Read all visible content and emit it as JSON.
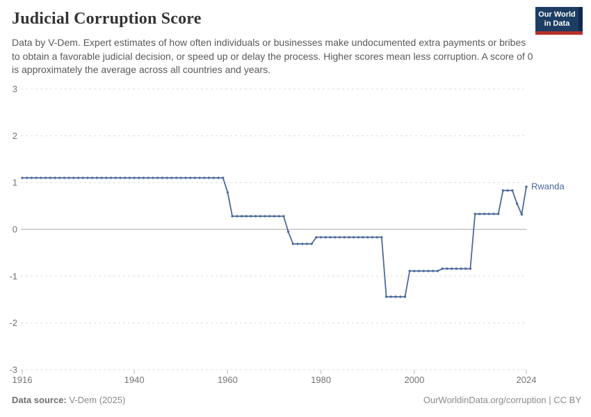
{
  "header": {
    "title": "Judicial Corruption Score",
    "logo_line1": "Our World",
    "logo_line2": "in Data"
  },
  "subtitle": "Data by V-Dem. Expert estimates of how often individuals or businesses make undocumented extra payments or bribes to obtain a favorable judicial decision, or speed up or delay the process. Higher scores mean less corruption. A score of 0 is approximately the average across all countries and years.",
  "footer": {
    "source_label": "Data source:",
    "source_value": " V-Dem (2025)",
    "right_text": "OurWorldinData.org/corruption | CC BY"
  },
  "colors": {
    "line": "#4C6A9C",
    "gridline": "#dcdcdc",
    "zero_line": "#a5a5a5",
    "tick_mark": "#b9b9b9",
    "logo_bg": "#0e2a4e",
    "logo_inner": "#1d3d63",
    "logo_red": "#b5312a"
  },
  "chart_data": {
    "type": "line",
    "title": "Judicial Corruption Score",
    "entity": "Rwanda",
    "xlabel": "",
    "ylabel": "",
    "xlim": [
      1916,
      2024
    ],
    "ylim": [
      -3,
      3
    ],
    "x_ticks": [
      1916,
      1940,
      1960,
      1980,
      2000,
      2024
    ],
    "y_ticks": [
      3,
      2,
      1,
      0,
      -1,
      -2,
      -3
    ],
    "grid": "dashed horizontal, solid zero line",
    "legend_position": "end-of-line label",
    "color": "#4C6A9C",
    "points": [
      [
        1916,
        1.1
      ],
      [
        1917,
        1.1
      ],
      [
        1918,
        1.1
      ],
      [
        1919,
        1.1
      ],
      [
        1920,
        1.1
      ],
      [
        1921,
        1.1
      ],
      [
        1922,
        1.1
      ],
      [
        1923,
        1.1
      ],
      [
        1924,
        1.1
      ],
      [
        1925,
        1.1
      ],
      [
        1926,
        1.1
      ],
      [
        1927,
        1.1
      ],
      [
        1928,
        1.1
      ],
      [
        1929,
        1.1
      ],
      [
        1930,
        1.1
      ],
      [
        1931,
        1.1
      ],
      [
        1932,
        1.1
      ],
      [
        1933,
        1.1
      ],
      [
        1934,
        1.1
      ],
      [
        1935,
        1.1
      ],
      [
        1936,
        1.1
      ],
      [
        1937,
        1.1
      ],
      [
        1938,
        1.1
      ],
      [
        1939,
        1.1
      ],
      [
        1940,
        1.1
      ],
      [
        1941,
        1.1
      ],
      [
        1942,
        1.1
      ],
      [
        1943,
        1.1
      ],
      [
        1944,
        1.1
      ],
      [
        1945,
        1.1
      ],
      [
        1946,
        1.1
      ],
      [
        1947,
        1.1
      ],
      [
        1948,
        1.1
      ],
      [
        1949,
        1.1
      ],
      [
        1950,
        1.1
      ],
      [
        1951,
        1.1
      ],
      [
        1952,
        1.1
      ],
      [
        1953,
        1.1
      ],
      [
        1954,
        1.1
      ],
      [
        1955,
        1.1
      ],
      [
        1956,
        1.1
      ],
      [
        1957,
        1.1
      ],
      [
        1958,
        1.1
      ],
      [
        1959,
        1.1
      ],
      [
        1960,
        0.79
      ],
      [
        1961,
        0.28
      ],
      [
        1962,
        0.28
      ],
      [
        1963,
        0.28
      ],
      [
        1964,
        0.28
      ],
      [
        1965,
        0.28
      ],
      [
        1966,
        0.28
      ],
      [
        1967,
        0.28
      ],
      [
        1968,
        0.28
      ],
      [
        1969,
        0.28
      ],
      [
        1970,
        0.28
      ],
      [
        1971,
        0.28
      ],
      [
        1972,
        0.28
      ],
      [
        1973,
        -0.05
      ],
      [
        1974,
        -0.31
      ],
      [
        1975,
        -0.31
      ],
      [
        1976,
        -0.31
      ],
      [
        1977,
        -0.31
      ],
      [
        1978,
        -0.31
      ],
      [
        1979,
        -0.17
      ],
      [
        1980,
        -0.17
      ],
      [
        1981,
        -0.17
      ],
      [
        1982,
        -0.17
      ],
      [
        1983,
        -0.17
      ],
      [
        1984,
        -0.17
      ],
      [
        1985,
        -0.17
      ],
      [
        1986,
        -0.17
      ],
      [
        1987,
        -0.17
      ],
      [
        1988,
        -0.17
      ],
      [
        1989,
        -0.17
      ],
      [
        1990,
        -0.17
      ],
      [
        1991,
        -0.17
      ],
      [
        1992,
        -0.17
      ],
      [
        1993,
        -0.17
      ],
      [
        1994,
        -1.44
      ],
      [
        1995,
        -1.44
      ],
      [
        1996,
        -1.44
      ],
      [
        1997,
        -1.44
      ],
      [
        1998,
        -1.44
      ],
      [
        1999,
        -0.89
      ],
      [
        2000,
        -0.89
      ],
      [
        2001,
        -0.89
      ],
      [
        2002,
        -0.89
      ],
      [
        2003,
        -0.89
      ],
      [
        2004,
        -0.89
      ],
      [
        2005,
        -0.89
      ],
      [
        2006,
        -0.84
      ],
      [
        2007,
        -0.84
      ],
      [
        2008,
        -0.84
      ],
      [
        2009,
        -0.84
      ],
      [
        2010,
        -0.84
      ],
      [
        2011,
        -0.84
      ],
      [
        2012,
        -0.84
      ],
      [
        2013,
        0.33
      ],
      [
        2014,
        0.33
      ],
      [
        2015,
        0.33
      ],
      [
        2016,
        0.33
      ],
      [
        2017,
        0.33
      ],
      [
        2018,
        0.33
      ],
      [
        2019,
        0.83
      ],
      [
        2020,
        0.83
      ],
      [
        2021,
        0.83
      ],
      [
        2022,
        0.55
      ],
      [
        2023,
        0.32
      ],
      [
        2024,
        0.91
      ]
    ]
  }
}
